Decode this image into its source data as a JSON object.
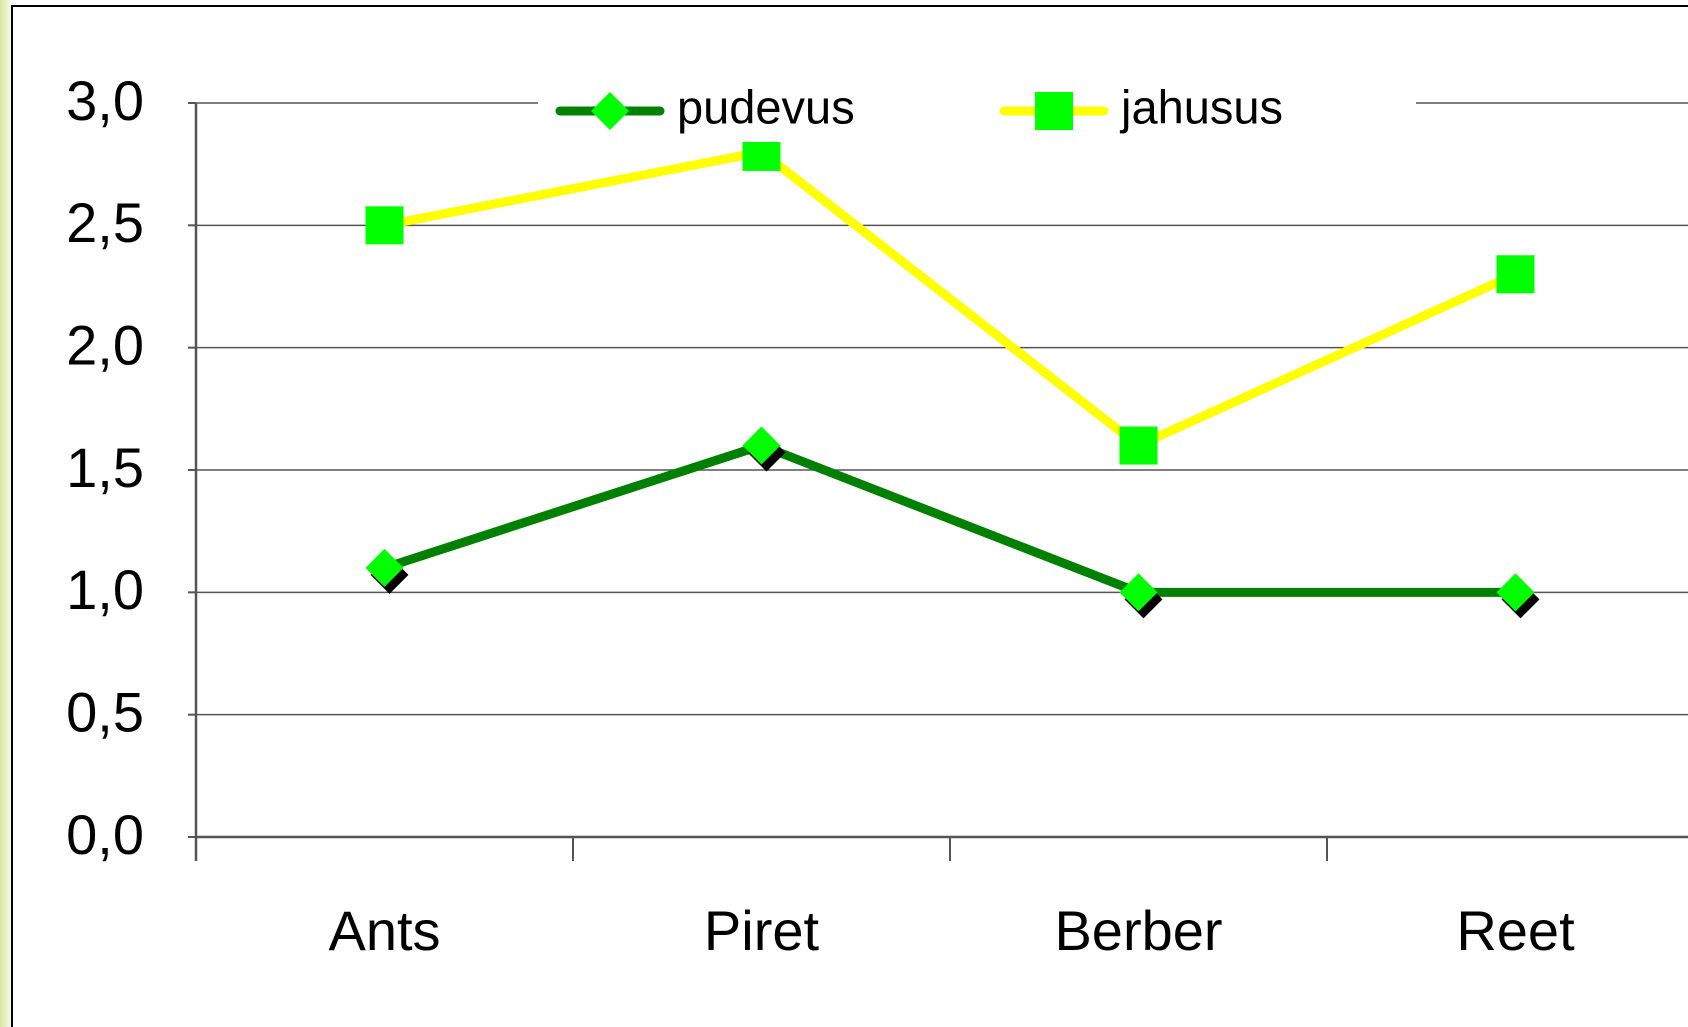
{
  "chart_data": {
    "type": "line",
    "categories": [
      "Ants",
      "Piret",
      "Berber",
      "Reet"
    ],
    "series": [
      {
        "name": "pudevus",
        "color": "#008000",
        "marker": "diamond",
        "marker_color": "#00ff00",
        "values": [
          1.1,
          1.6,
          1.0,
          1.0
        ]
      },
      {
        "name": "jahusus",
        "color": "#ffff00",
        "marker": "square",
        "marker_color": "#00ff00",
        "values": [
          2.5,
          2.8,
          1.6,
          2.3
        ]
      }
    ],
    "ylim": [
      0,
      3
    ],
    "yticks": [
      {
        "value": 0,
        "label": "0,0"
      },
      {
        "value": 0.5,
        "label": "0,5"
      },
      {
        "value": 1,
        "label": "1,0"
      },
      {
        "value": 1.5,
        "label": "1,5"
      },
      {
        "value": 2,
        "label": "2,0"
      },
      {
        "value": 2.5,
        "label": "2,5"
      },
      {
        "value": 3,
        "label": "3,0"
      }
    ],
    "grid": true,
    "legend": "top"
  }
}
